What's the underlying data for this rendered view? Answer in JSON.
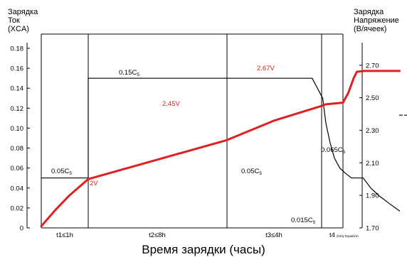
{
  "left_axis_title": "Зарядка\nТок\n(XCA)",
  "right_axis_title": "Зарядка\nНапряжение\n(В/ячеек)",
  "x_axis_title": "Время зарядки (часы)",
  "colors": {
    "voltage": "#e02020",
    "current": "#000000",
    "label_red": "#e02020"
  },
  "chart_data": {
    "type": "line",
    "xlabel": "Время зарядки (часы)",
    "left_axis": {
      "title": "Зарядка Ток (XCA)",
      "ylim": [
        0,
        0.18
      ],
      "ticks": [
        0,
        0.02,
        0.04,
        0.06,
        0.08,
        0.1,
        0.12,
        0.14,
        0.16,
        0.18
      ],
      "tick_labels": [
        "0",
        "0.02",
        "0.04",
        "0.06",
        "0.08",
        "0.10",
        "0.12",
        "0.14",
        "0.16",
        "0.18"
      ]
    },
    "right_axis": {
      "title": "Зарядка Напряжение (В/ячеек)",
      "ylim": [
        1.7,
        2.8
      ],
      "ticks": [
        1.7,
        1.9,
        2.1,
        2.3,
        2.5,
        2.7
      ],
      "tick_labels": [
        "1.70",
        "1.90",
        "2.10",
        "2.30",
        "2.50",
        "2.70"
      ]
    },
    "phases": [
      {
        "label": "t1≤1h"
      },
      {
        "label": "t2≤8h"
      },
      {
        "label": "t3≤4h"
      },
      {
        "label": "t4",
        "note": "(Only Equalize)"
      }
    ],
    "series": [
      {
        "axis": "left",
        "points": [
          [
            0,
            0.05
          ],
          [
            1,
            0.05
          ],
          [
            1,
            0.15
          ],
          [
            2.9,
            0.15
          ],
          [
            3.05,
            0.13
          ],
          [
            3.2,
            0.105
          ],
          [
            3.4,
            0.085
          ],
          [
            3.6,
            0.07
          ],
          [
            3.85,
            0.06
          ],
          [
            4.1,
            0.055
          ],
          [
            4.4,
            0.05
          ],
          [
            4.95,
            0.05
          ],
          [
            5.3,
            0.04
          ],
          [
            5.7,
            0.032
          ],
          [
            6.2,
            0.024
          ],
          [
            6.65,
            0.017
          ]
        ]
      },
      {
        "axis": "left",
        "dashed": true,
        "points": [
          [
            6.65,
            0.113
          ],
          [
            7,
            0.113
          ]
        ]
      },
      {
        "axis": "right",
        "points": [
          [
            0,
            1.71
          ],
          [
            0.3,
            1.81
          ],
          [
            0.6,
            1.9
          ],
          [
            1,
            2.0
          ],
          [
            1.5,
            2.12
          ],
          [
            2,
            2.24
          ],
          [
            2.5,
            2.36
          ],
          [
            3,
            2.45
          ],
          [
            3.2,
            2.46
          ],
          [
            3.6,
            2.465
          ],
          [
            4,
            2.47
          ],
          [
            4.25,
            2.53
          ],
          [
            4.5,
            2.62
          ],
          [
            4.65,
            2.66
          ],
          [
            5,
            2.665
          ],
          [
            6,
            2.665
          ],
          [
            6.65,
            2.665
          ]
        ]
      }
    ],
    "annotations": [
      {
        "text": "0.15C",
        "sub": "5",
        "axis": "left"
      },
      {
        "text": "0.05C",
        "sub": "5",
        "axis": "left"
      },
      {
        "text": "0.05C",
        "sub": "5",
        "axis": "left"
      },
      {
        "text": "0.015C",
        "sub": "5",
        "axis": "left"
      },
      {
        "text": "0.065C",
        "sub": "5",
        "axis": "left"
      },
      {
        "text": "2V",
        "axis": "right",
        "color": "red"
      },
      {
        "text": "2.45V",
        "axis": "right",
        "color": "red"
      },
      {
        "text": "2.67V",
        "axis": "right",
        "color": "red"
      }
    ]
  }
}
